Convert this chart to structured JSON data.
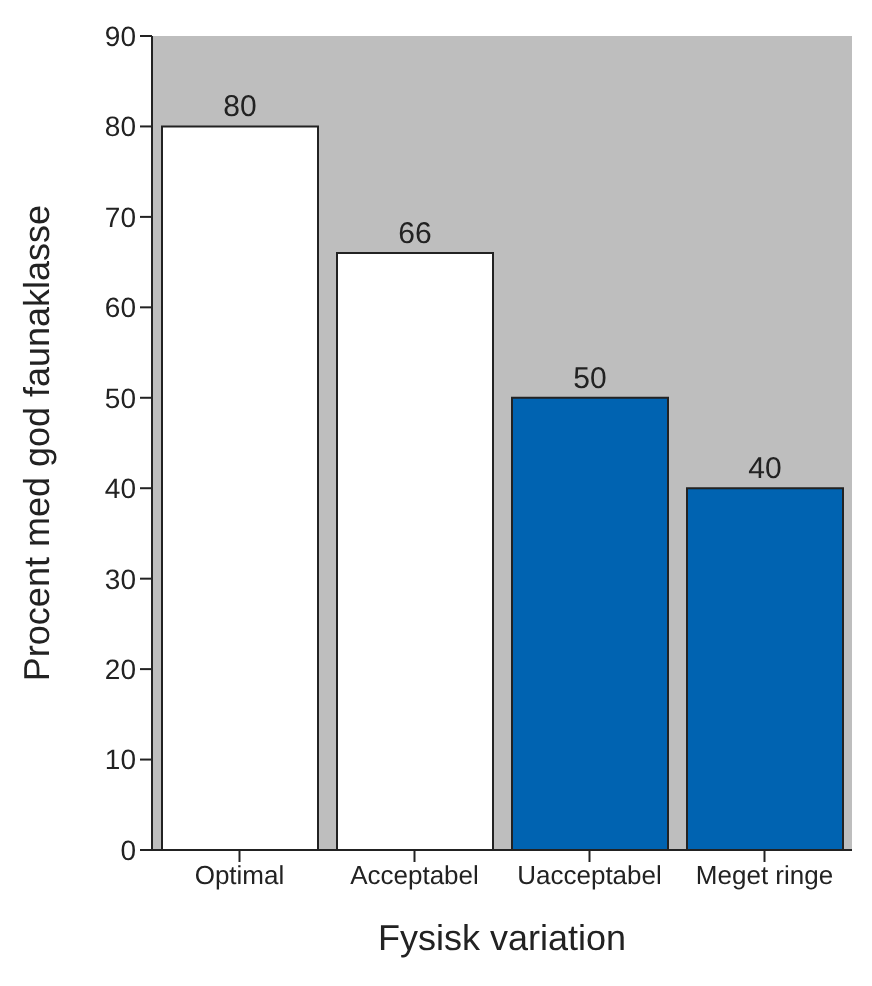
{
  "chart_data": {
    "type": "bar",
    "xlabel": "Fysisk variation",
    "ylabel": "Procent med god faunaklasse",
    "categories": [
      "Optimal",
      "Acceptabel",
      "Uacceptabel",
      "Meget ringe"
    ],
    "values": [
      80,
      66,
      50,
      40
    ],
    "colors": [
      "#ffffff",
      "#ffffff",
      "#0063b1",
      "#0063b1"
    ],
    "ylim": [
      0,
      90
    ],
    "yticks": [
      0,
      10,
      20,
      30,
      40,
      50,
      60,
      70,
      80,
      90
    ],
    "data_labels": true,
    "grid": false
  }
}
